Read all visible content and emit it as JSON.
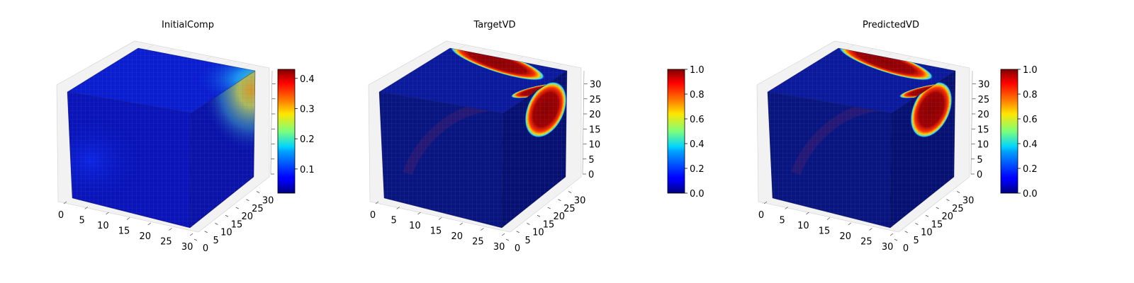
{
  "chart_data": [
    {
      "type": "heatmap",
      "subtype": "3d-voxel-cube",
      "title": "InitialComp",
      "x_ticks": [
        "0",
        "5",
        "10",
        "15",
        "20",
        "25",
        "30"
      ],
      "y_ticks": [
        "0",
        "5",
        "10",
        "15",
        "20",
        "25",
        "30"
      ],
      "z_ticks": [],
      "xlim": [
        0,
        32
      ],
      "ylim": [
        0,
        32
      ],
      "zlim": [
        0,
        32
      ],
      "colormap": "jet",
      "colorbar": {
        "vmin": 0.02,
        "vmax": 0.43,
        "ticks": [
          "0.1",
          "0.2",
          "0.3",
          "0.4"
        ],
        "tick_values": [
          0.1,
          0.2,
          0.3,
          0.4
        ]
      },
      "grid": true
    },
    {
      "type": "heatmap",
      "subtype": "3d-voxel-cube",
      "title": "TargetVD",
      "x_ticks": [
        "0",
        "5",
        "10",
        "15",
        "20",
        "25",
        "30"
      ],
      "y_ticks": [
        "0",
        "5",
        "10",
        "15",
        "20",
        "25",
        "30"
      ],
      "z_ticks": [
        "0",
        "5",
        "10",
        "15",
        "20",
        "25",
        "30"
      ],
      "xlim": [
        0,
        32
      ],
      "ylim": [
        0,
        32
      ],
      "zlim": [
        0,
        32
      ],
      "colormap": "jet",
      "colorbar": {
        "vmin": 0.0,
        "vmax": 1.0,
        "ticks": [
          "0.0",
          "0.2",
          "0.4",
          "0.6",
          "0.8",
          "1.0"
        ],
        "tick_values": [
          0,
          0.2,
          0.4,
          0.6,
          0.8,
          1.0
        ]
      },
      "grid": true
    },
    {
      "type": "heatmap",
      "subtype": "3d-voxel-cube",
      "title": "PredictedVD",
      "x_ticks": [
        "0",
        "5",
        "10",
        "15",
        "20",
        "25",
        "30"
      ],
      "y_ticks": [
        "0",
        "5",
        "10",
        "15",
        "20",
        "25",
        "30"
      ],
      "z_ticks": [
        "0",
        "5",
        "10",
        "15",
        "20",
        "25",
        "30"
      ],
      "xlim": [
        0,
        32
      ],
      "ylim": [
        0,
        32
      ],
      "zlim": [
        0,
        32
      ],
      "colormap": "jet",
      "colorbar": {
        "vmin": 0.0,
        "vmax": 1.0,
        "ticks": [
          "0.0",
          "0.2",
          "0.4",
          "0.6",
          "0.8",
          "1.0"
        ],
        "tick_values": [
          0,
          0.2,
          0.4,
          0.6,
          0.8,
          1.0
        ]
      },
      "grid": true
    }
  ]
}
